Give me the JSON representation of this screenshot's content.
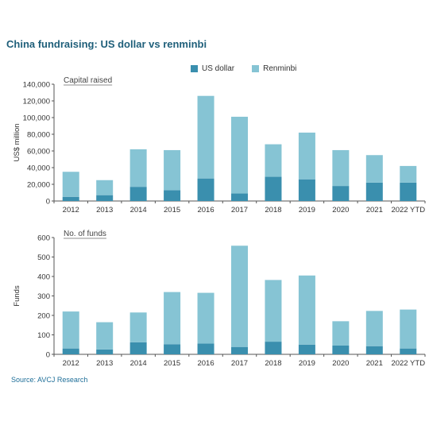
{
  "title": "China fundraising: US dollar vs renminbi",
  "source": "Source: AVCJ Research",
  "colors": {
    "usd": "#3a8fae",
    "rmb": "#86c4d4",
    "axis": "#555555"
  },
  "chart_data": [
    {
      "type": "bar",
      "stacked": true,
      "subtitle": "Capital raised",
      "ylabel": "US$ million",
      "ylim": [
        0,
        140000
      ],
      "yticks": [
        0,
        20000,
        40000,
        60000,
        80000,
        100000,
        120000,
        140000
      ],
      "yticklabels": [
        "0",
        "20,000",
        "40,000",
        "60,000",
        "80,000",
        "100,000",
        "120,000",
        "140,000"
      ],
      "categories": [
        "2012",
        "2013",
        "2014",
        "2015",
        "2016",
        "2017",
        "2018",
        "2019",
        "2020",
        "2021",
        "2022 YTD"
      ],
      "legend": "top",
      "series": [
        {
          "name": "US dollar",
          "values": [
            5000,
            7000,
            17000,
            13000,
            27000,
            9000,
            29000,
            26000,
            18000,
            22000,
            22000
          ]
        },
        {
          "name": "Renminbi",
          "values": [
            30000,
            18000,
            45000,
            48000,
            99000,
            92000,
            39000,
            56000,
            43000,
            33000,
            20000
          ]
        }
      ]
    },
    {
      "type": "bar",
      "stacked": true,
      "subtitle": "No. of funds",
      "ylabel": "Funds",
      "ylim": [
        0,
        600
      ],
      "yticks": [
        0,
        100,
        200,
        300,
        400,
        500,
        600
      ],
      "yticklabels": [
        "0",
        "100",
        "200",
        "300",
        "400",
        "500",
        "600"
      ],
      "categories": [
        "2012",
        "2013",
        "2014",
        "2015",
        "2016",
        "2017",
        "2018",
        "2019",
        "2020",
        "2021",
        "2022 YTD"
      ],
      "series": [
        {
          "name": "US dollar",
          "values": [
            30,
            25,
            62,
            52,
            55,
            38,
            65,
            50,
            45,
            42,
            30
          ]
        },
        {
          "name": "Renminbi",
          "values": [
            190,
            140,
            153,
            268,
            261,
            520,
            317,
            355,
            125,
            181,
            200
          ]
        }
      ]
    }
  ]
}
